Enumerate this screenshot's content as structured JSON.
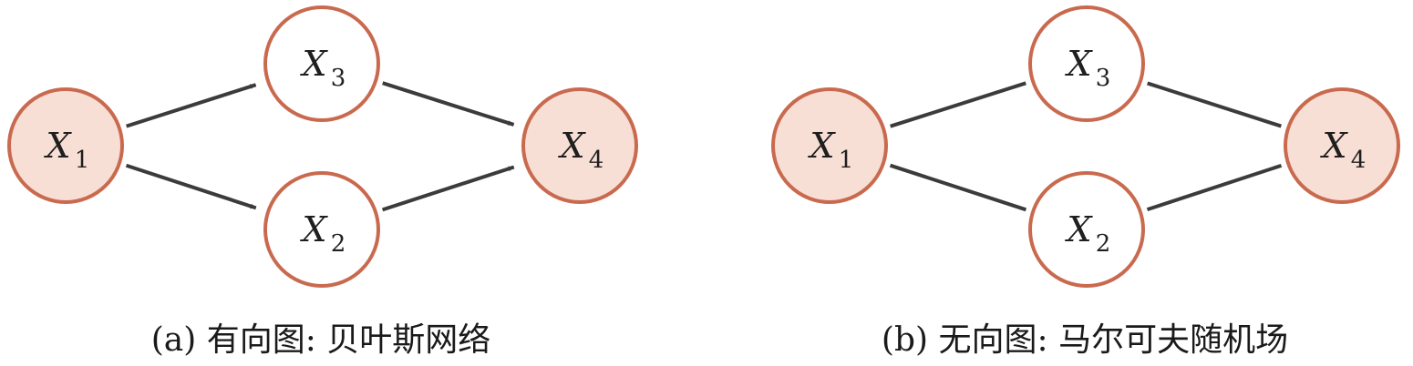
{
  "colors": {
    "node_stroke": "#c96a4f",
    "node_fill_shaded": "#f8dfd5",
    "node_fill_plain": "#ffffff",
    "edge": "#3b3b3b"
  },
  "panels": [
    {
      "caption": "(a) 有向图: 贝叶斯网络",
      "directed": true,
      "nodes": [
        {
          "id": "x1",
          "label": "X",
          "sub": "1",
          "shaded": true
        },
        {
          "id": "x3",
          "label": "X",
          "sub": "3",
          "shaded": false
        },
        {
          "id": "x2",
          "label": "X",
          "sub": "2",
          "shaded": false
        },
        {
          "id": "x4",
          "label": "X",
          "sub": "4",
          "shaded": true
        }
      ],
      "edges": [
        {
          "from": "x1",
          "to": "x3"
        },
        {
          "from": "x1",
          "to": "x2"
        },
        {
          "from": "x3",
          "to": "x4"
        },
        {
          "from": "x2",
          "to": "x4"
        }
      ]
    },
    {
      "caption": "(b) 无向图: 马尔可夫随机场",
      "directed": false,
      "nodes": [
        {
          "id": "x1",
          "label": "X",
          "sub": "1",
          "shaded": true
        },
        {
          "id": "x3",
          "label": "X",
          "sub": "3",
          "shaded": false
        },
        {
          "id": "x2",
          "label": "X",
          "sub": "2",
          "shaded": false
        },
        {
          "id": "x4",
          "label": "X",
          "sub": "4",
          "shaded": true
        }
      ],
      "edges": [
        {
          "from": "x1",
          "to": "x3"
        },
        {
          "from": "x1",
          "to": "x2"
        },
        {
          "from": "x3",
          "to": "x4"
        },
        {
          "from": "x2",
          "to": "x4"
        }
      ]
    }
  ]
}
